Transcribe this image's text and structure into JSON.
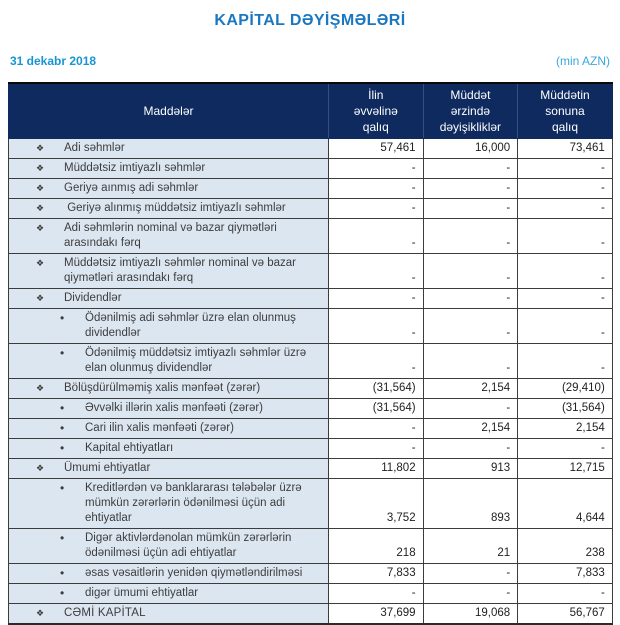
{
  "page": {
    "title": "KAPİTAL DƏYİŞMƏLƏRİ",
    "date": "31 dekabr 2018",
    "unit": "(min AZN)"
  },
  "colors": {
    "title_blue": "#1b78c0",
    "date_cyan": "#1795d3",
    "unit_cyan": "#3ba7dd",
    "header_navy": "#0e2a5f",
    "label_column_blue": "#dce6f1",
    "border_dark": "#3c3c3c"
  },
  "icons": {
    "diamond": "❖",
    "bullet": "•"
  },
  "table": {
    "headers": [
      "Maddələr",
      "İlin\nəvvəlinə\nqalıq",
      "Müddət\nərzində\ndəyişikliklər",
      "Müddətin\nsonuna\nqalıq"
    ],
    "rows": [
      {
        "marker": "diamond",
        "label": "Adi səhmlər",
        "values": [
          "57,461",
          "16,000",
          "73,461"
        ]
      },
      {
        "marker": "diamond",
        "label": "Müddətsiz imtiyazlı səhmlər",
        "values": [
          "-",
          "-",
          "-"
        ]
      },
      {
        "marker": "diamond",
        "label": "Geriyə aınmış adi səhmlər",
        "values": [
          "-",
          "-",
          "-"
        ]
      },
      {
        "marker": "diamond",
        "label": " Geriyə alınmış müddətsiz imtiyazlı səhmlər",
        "values": [
          "-",
          "-",
          "-"
        ]
      },
      {
        "marker": "diamond",
        "label": "Adi səhmlərin nominal və bazar qiymətləri arasındakı fərq",
        "values": [
          "-",
          "-",
          "-"
        ]
      },
      {
        "marker": "diamond",
        "label": "Müddətsiz imtiyazlı səhmlər nominal və bazar qiymətləri arasındakı fərq",
        "values": [
          "-",
          "-",
          "-"
        ]
      },
      {
        "marker": "diamond",
        "label": "Dividendlər",
        "values": [
          "-",
          "-",
          "-"
        ]
      },
      {
        "marker": "bullet",
        "label": "Ödənilmiş adi səhmlər üzrə elan olunmuş dividendlər",
        "values": [
          "-",
          "-",
          "-"
        ]
      },
      {
        "marker": "bullet",
        "label": "Ödənilmiş müddətsiz imtiyazlı səhmlər üzrə elan olunmuş dividendlər",
        "values": [
          "-",
          "-",
          "-"
        ]
      },
      {
        "marker": "diamond",
        "label": "Bölüşdürülməmiş xalis mənfəət (zərər)",
        "values": [
          "(31,564)",
          "2,154",
          "(29,410)"
        ]
      },
      {
        "marker": "bullet",
        "label": "Əvvəlki illərin xalis mənfəəti (zərər)",
        "values": [
          "(31,564)",
          "-",
          "(31,564)"
        ]
      },
      {
        "marker": "bullet",
        "label": "Cari ilin xalis mənfəəti (zərər)",
        "values": [
          "-",
          "2,154",
          "2,154"
        ]
      },
      {
        "marker": "bullet",
        "label": "Kapital ehtiyatları",
        "values": [
          "-",
          "-",
          "-"
        ]
      },
      {
        "marker": "diamond",
        "label": "Ümumi ehtiyatlar",
        "values": [
          "11,802",
          "913",
          "12,715"
        ]
      },
      {
        "marker": "bullet",
        "label": "Kreditlərdən və banklararası tələbələr üzrə mümkün zərərlərin ödənilməsi üçün adi ehtiyatlar",
        "values": [
          "3,752",
          "893",
          "4,644"
        ]
      },
      {
        "marker": "bullet",
        "label": "Digər aktivlərdənolan mümkün zərərlərin ödənilməsi üçün adi ehtiyatlar",
        "values": [
          "218",
          "21",
          "238"
        ]
      },
      {
        "marker": "bullet",
        "label": "əsas vəsaitlərin yenidən qiymətləndirilməsi",
        "values": [
          "7,833",
          "-",
          "7,833"
        ]
      },
      {
        "marker": "bullet",
        "label": "digər ümumi ehtiyatlar",
        "values": [
          "-",
          "-",
          "-"
        ]
      },
      {
        "marker": "diamond",
        "label": "CƏMİ KAPİTAL",
        "values": [
          "37,699",
          "19,068",
          "56,767"
        ],
        "total": true
      }
    ]
  }
}
